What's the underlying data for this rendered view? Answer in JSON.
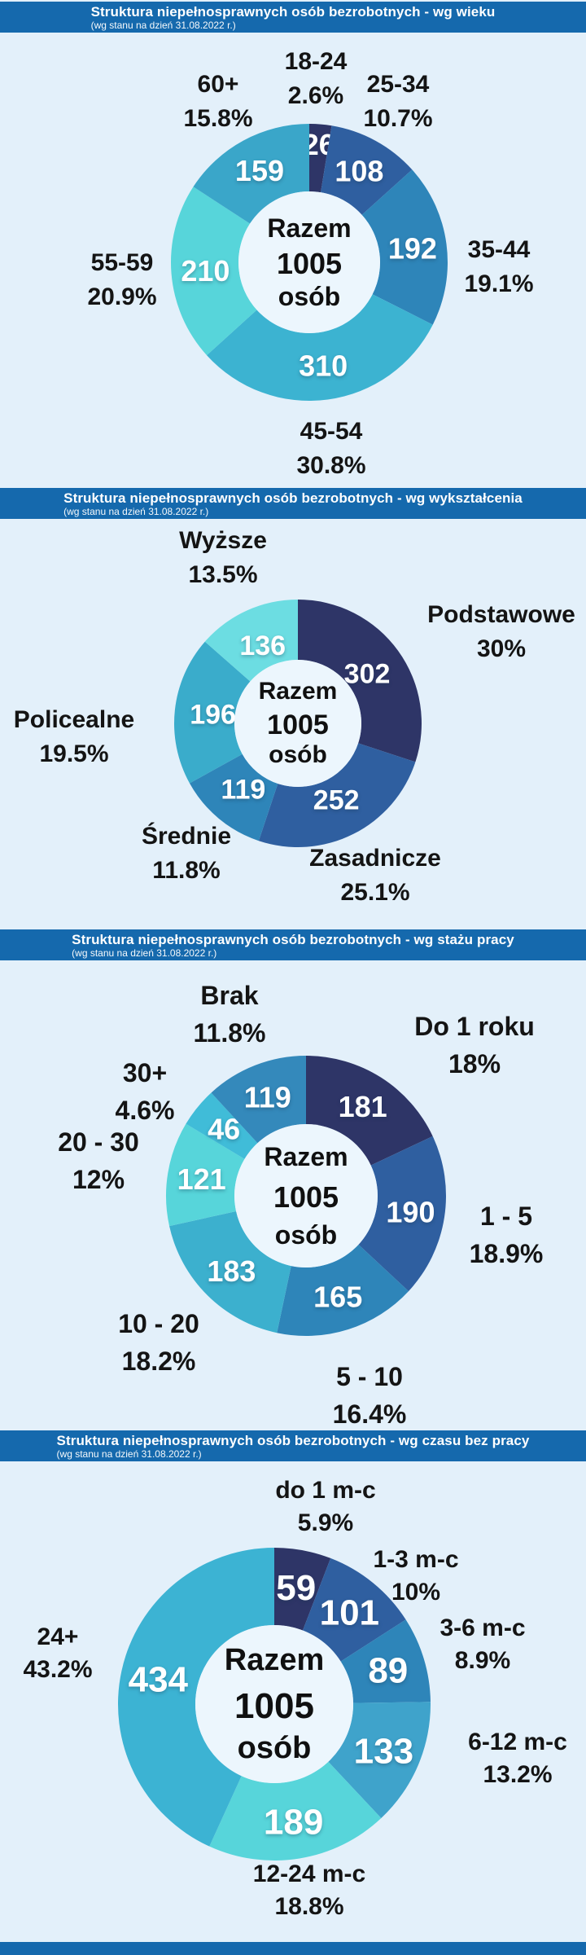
{
  "page": {
    "background_color": "#e3f0fa",
    "header_bar_color": "#1569ad",
    "donut_hole_color": "#ecf6fd",
    "total_people": 1005
  },
  "chart_data": [
    {
      "type": "pie",
      "subtype": "donut",
      "title": "Struktura niepełnosprawnych osób bezrobotnych - wg wieku",
      "subtitle": "(wg stanu na dzień 31.08.2022 r.)",
      "center": {
        "line1": "Razem",
        "line2": "1005",
        "line3": "osób"
      },
      "categories": [
        "18-24",
        "25-34",
        "35-44",
        "45-54",
        "55-59",
        "60+"
      ],
      "values": [
        26,
        108,
        192,
        310,
        210,
        159
      ],
      "pct_labels": [
        "2.6%",
        "10.7%",
        "19.1%",
        "30.8%",
        "20.9%",
        "15.8%"
      ],
      "colors": [
        "#2e3567",
        "#2f5fa0",
        "#2e85b9",
        "#3cb3d1",
        "#57d5da",
        "#3aa6c9"
      ],
      "legend_position": "around",
      "grid": false
    },
    {
      "type": "pie",
      "subtype": "donut",
      "title": "Struktura niepełnosprawnych osób bezrobotnych - wg wykształcenia",
      "subtitle": "(wg stanu na dzień 31.08.2022 r.)",
      "center": {
        "line1": "Razem",
        "line2": "1005",
        "line3": "osób"
      },
      "categories": [
        "Podstawowe",
        "Zasadnicze",
        "Średnie",
        "Policealne",
        "Wyższe"
      ],
      "values": [
        302,
        252,
        119,
        196,
        136
      ],
      "pct_labels": [
        "30%",
        "25.1%",
        "11.8%",
        "19.5%",
        "13.5%"
      ],
      "colors": [
        "#2e3567",
        "#2f5fa0",
        "#2e85b9",
        "#3aaccb",
        "#6cdde2"
      ],
      "legend_position": "around",
      "grid": false
    },
    {
      "type": "pie",
      "subtype": "donut",
      "title": "Struktura niepełnosprawnych osób bezrobotnych - wg stażu pracy",
      "subtitle": "(wg stanu na dzień 31.08.2022 r.)",
      "center": {
        "line1": "Razem",
        "line2": "1005",
        "line3": "osób"
      },
      "categories": [
        "Do 1 roku",
        "1 - 5",
        "5 - 10",
        "10 - 20",
        "20 - 30",
        "30+",
        "Brak"
      ],
      "values": [
        181,
        190,
        165,
        183,
        121,
        46,
        119
      ],
      "pct_labels": [
        "18%",
        "18.9%",
        "16.4%",
        "18.2%",
        "12%",
        "4.6%",
        "11.8%"
      ],
      "colors": [
        "#2e3567",
        "#2f5fa0",
        "#2e85b9",
        "#3cb0ce",
        "#57d5da",
        "#40bcd8",
        "#3489bb"
      ],
      "legend_position": "around",
      "grid": false
    },
    {
      "type": "pie",
      "subtype": "donut",
      "title": "Struktura niepełnosprawnych osób bezrobotnych - wg czasu bez pracy",
      "subtitle": "(wg stanu na dzień 31.08.2022 r.)",
      "center": {
        "line1": "Razem",
        "line2": "1005",
        "line3": "osób"
      },
      "categories": [
        "do 1 m-c",
        "1-3 m-c",
        "3-6 m-c",
        "6-12 m-c",
        "12-24 m-c",
        "24+"
      ],
      "values": [
        59,
        101,
        89,
        133,
        189,
        434
      ],
      "pct_labels": [
        "5.9%",
        "10%",
        "8.9%",
        "13.2%",
        "18.8%",
        "43.2%"
      ],
      "colors": [
        "#2e3567",
        "#2f5fa0",
        "#2e85b9",
        "#3fa3cb",
        "#57d5da",
        "#3cb3d3"
      ],
      "legend_position": "around",
      "grid": false
    }
  ]
}
